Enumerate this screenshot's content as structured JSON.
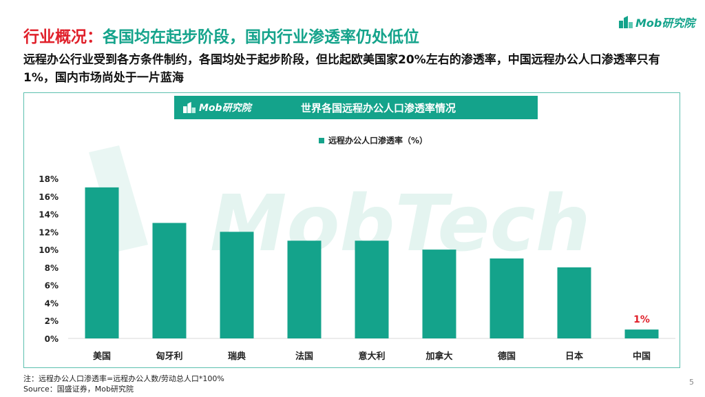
{
  "header": {
    "title_prefix": "行业概况：",
    "title_main": "各国均在起步阶段，国内行业渗透率仍处低位",
    "brand": "Mob研究院"
  },
  "subtitle": "远程办公行业受到各方条件制约，各国均处于起步阶段，但比起欧美国家20%左右的渗透率，中国远程办公人口渗透率只有1%，国内市场尚处于一片蓝海",
  "chart_header": {
    "brand": "Mob研究院",
    "title": "世界各国远程办公人口渗透率情况"
  },
  "watermark": "MobTech",
  "colors": {
    "accent": "#14a38b",
    "title_prefix": "#e0202a",
    "highlight_label": "#e0202a"
  },
  "chart_data": {
    "type": "bar",
    "title": "世界各国远程办公人口渗透率情况",
    "categories": [
      "美国",
      "匈牙利",
      "瑞典",
      "法国",
      "意大利",
      "加拿大",
      "德国",
      "日本",
      "中国"
    ],
    "series": [
      {
        "name": "远程办公人口渗透率（%）",
        "values": [
          17,
          13,
          12,
          11,
          11,
          10,
          9,
          8,
          1
        ]
      }
    ],
    "yticks": [
      "0%",
      "2%",
      "4%",
      "6%",
      "8%",
      "10%",
      "12%",
      "14%",
      "16%",
      "18%"
    ],
    "ylim": [
      0,
      18
    ],
    "annotations": [
      {
        "category": "中国",
        "label": "1%"
      }
    ],
    "grid": false,
    "legend_position": "top-center"
  },
  "footer": {
    "note": "注：远程办公人口渗透率=远程办公人数/劳动总人口*100%",
    "source": "Source：国盛证券，Mob研究院",
    "page_number": "5"
  }
}
